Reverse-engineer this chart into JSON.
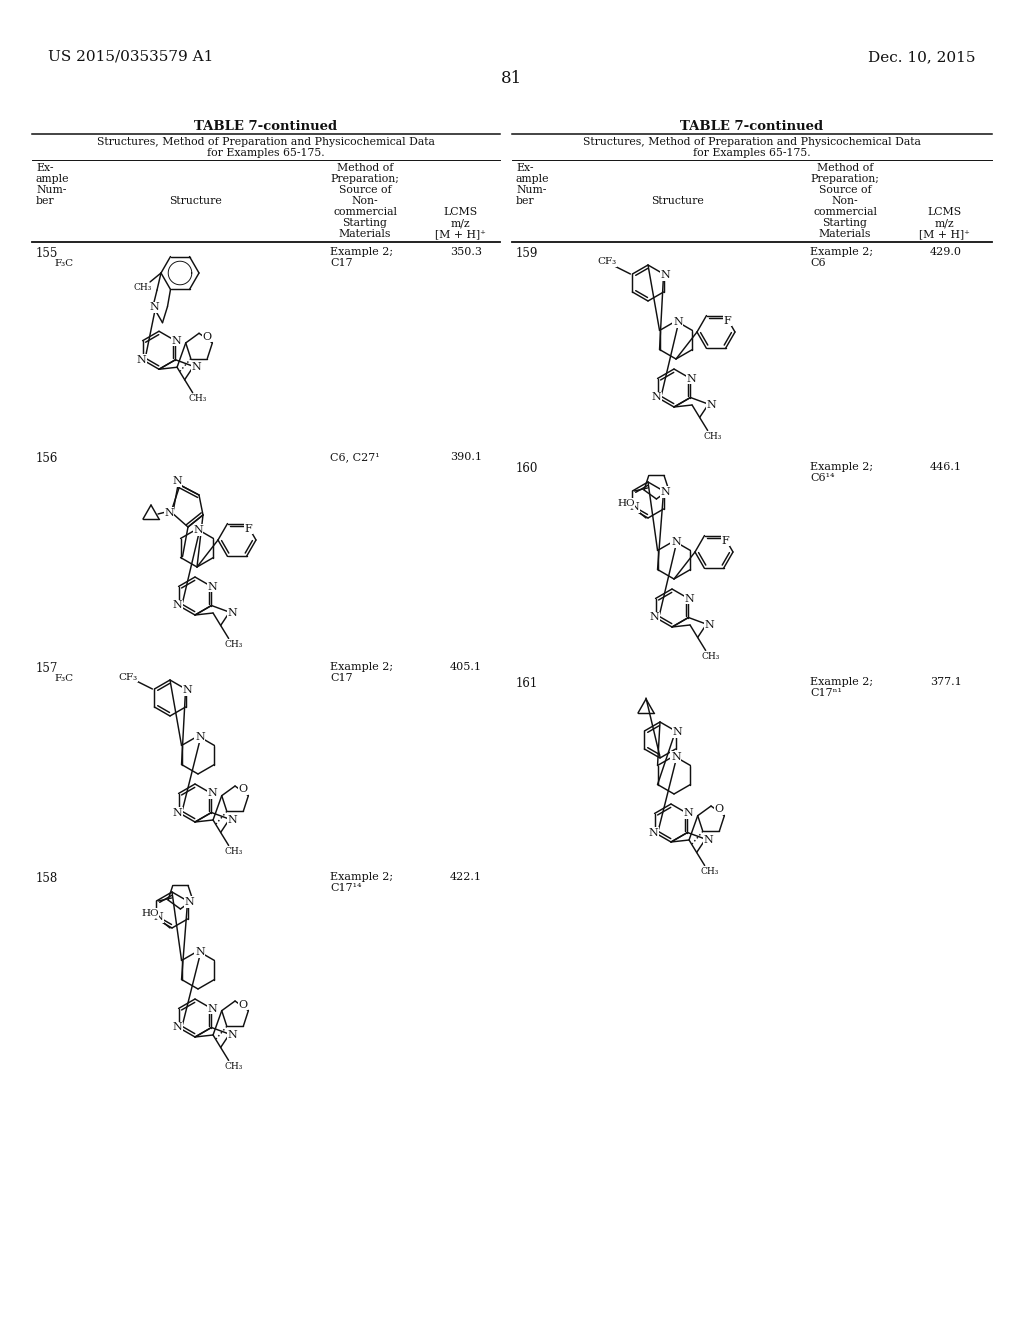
{
  "bg": "#ffffff",
  "patent_left": "US 2015/0353579 A1",
  "patent_right": "Dec. 10, 2015",
  "page_num": "81",
  "table_title": "TABLE 7-continued",
  "subtitle1": "Structures, Method of Preparation and Physicochemical Data",
  "subtitle2": "for Examples 65-175.",
  "left_rows": [
    {
      "num": "155",
      "prep": "Example 2;\nC17",
      "lcms": "350.3"
    },
    {
      "num": "156",
      "prep": "C6, C27¹",
      "lcms": "390.1"
    },
    {
      "num": "157",
      "prep": "Example 2;\nC17",
      "lcms": "405.1"
    },
    {
      "num": "158",
      "prep": "Example 2;\nC17¹⁴",
      "lcms": "422.1"
    }
  ],
  "right_rows": [
    {
      "num": "159",
      "prep": "Example 2;\nC6",
      "lcms": "429.0"
    },
    {
      "num": "160",
      "prep": "Example 2;\nC6¹⁴",
      "lcms": "446.1"
    },
    {
      "num": "161",
      "prep": "Example 2;\nC17ⁿ¹",
      "lcms": "377.1"
    }
  ]
}
